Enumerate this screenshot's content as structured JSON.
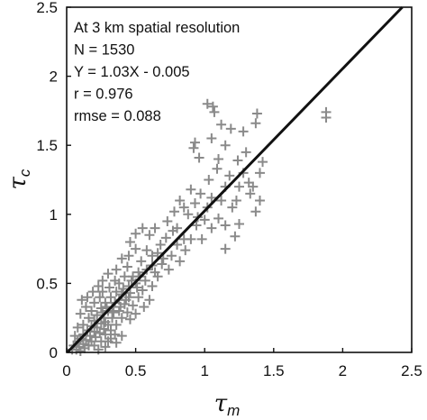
{
  "chart_data": {
    "type": "scatter",
    "xlabel": {
      "symbol": "τ",
      "subscript": "m"
    },
    "ylabel": {
      "symbol": "τ",
      "subscript": "c"
    },
    "xlim": [
      0,
      2.5
    ],
    "ylim": [
      0,
      2.5
    ],
    "xticks": [
      "0",
      "0.5",
      "1",
      "1.5",
      "2",
      "2.5"
    ],
    "yticks": [
      "0",
      "0.5",
      "1",
      "1.5",
      "2",
      "2.5"
    ],
    "grid": false,
    "marker": "+",
    "marker_color": "#8a8a8a",
    "line_color": "#111111",
    "annotations": [
      "At 3 km spatial resolution",
      "N = 1530",
      "Y = 1.03X - 0.005",
      "r = 0.976",
      "rmse = 0.088"
    ],
    "fit_line": {
      "slope": 1.03,
      "intercept": -0.005
    },
    "series": [
      {
        "points": [
          [
            1.02,
            1.8
          ],
          [
            1.06,
            1.78
          ],
          [
            1.07,
            1.74
          ],
          [
            1.88,
            1.74
          ],
          [
            1.88,
            1.7
          ],
          [
            1.38,
            1.73
          ],
          [
            1.37,
            1.66
          ],
          [
            1.12,
            1.65
          ],
          [
            1.19,
            1.62
          ],
          [
            1.28,
            1.6
          ],
          [
            0.93,
            1.52
          ],
          [
            0.92,
            1.48
          ],
          [
            1.05,
            1.55
          ],
          [
            1.15,
            1.5
          ],
          [
            0.96,
            1.41
          ],
          [
            1.1,
            1.4
          ],
          [
            1.24,
            1.39
          ],
          [
            1.3,
            1.45
          ],
          [
            1.4,
            1.3
          ],
          [
            1.32,
            1.23
          ],
          [
            1.28,
            1.3
          ],
          [
            1.18,
            1.28
          ],
          [
            1.09,
            1.33
          ],
          [
            1.03,
            1.25
          ],
          [
            1.25,
            1.2
          ],
          [
            1.15,
            1.2
          ],
          [
            1.23,
            1.1
          ],
          [
            1.4,
            1.1
          ],
          [
            1.37,
            1.02
          ],
          [
            1.33,
            1.15
          ],
          [
            1.05,
            1.12
          ],
          [
            0.9,
            1.18
          ],
          [
            0.93,
            1.08
          ],
          [
            1.02,
            1.05
          ],
          [
            1.1,
            0.97
          ],
          [
            0.82,
            1.1
          ],
          [
            0.78,
            1.02
          ],
          [
            0.88,
            1.0
          ],
          [
            0.73,
            0.95
          ],
          [
            0.94,
            0.92
          ],
          [
            1.05,
            0.9
          ],
          [
            1.15,
            0.92
          ],
          [
            1.25,
            0.93
          ],
          [
            0.8,
            0.9
          ],
          [
            1.22,
            0.84
          ],
          [
            1.15,
            0.75
          ],
          [
            0.98,
            0.82
          ],
          [
            0.9,
            0.82
          ],
          [
            0.86,
            0.74
          ],
          [
            0.8,
            0.78
          ],
          [
            0.72,
            0.83
          ],
          [
            0.64,
            0.9
          ],
          [
            0.6,
            0.85
          ],
          [
            0.55,
            0.9
          ],
          [
            0.5,
            0.86
          ],
          [
            0.46,
            0.8
          ],
          [
            0.5,
            0.75
          ],
          [
            0.58,
            0.74
          ],
          [
            0.66,
            0.72
          ],
          [
            0.7,
            0.68
          ],
          [
            0.62,
            0.63
          ],
          [
            0.54,
            0.66
          ],
          [
            0.45,
            0.7
          ],
          [
            0.4,
            0.68
          ],
          [
            0.52,
            0.58
          ],
          [
            0.58,
            0.6
          ],
          [
            0.74,
            0.6
          ],
          [
            0.66,
            0.55
          ],
          [
            0.48,
            0.55
          ],
          [
            0.42,
            0.55
          ],
          [
            0.38,
            0.5
          ],
          [
            0.45,
            0.48
          ],
          [
            0.5,
            0.5
          ],
          [
            0.55,
            0.45
          ],
          [
            0.62,
            0.48
          ],
          [
            0.36,
            0.44
          ],
          [
            0.32,
            0.4
          ],
          [
            0.4,
            0.42
          ],
          [
            0.45,
            0.4
          ],
          [
            0.52,
            0.4
          ],
          [
            0.6,
            0.38
          ],
          [
            0.28,
            0.36
          ],
          [
            0.35,
            0.36
          ],
          [
            0.42,
            0.35
          ],
          [
            0.48,
            0.34
          ],
          [
            0.56,
            0.33
          ],
          [
            0.25,
            0.32
          ],
          [
            0.3,
            0.3
          ],
          [
            0.38,
            0.3
          ],
          [
            0.44,
            0.29
          ],
          [
            0.5,
            0.28
          ],
          [
            0.22,
            0.27
          ],
          [
            0.27,
            0.25
          ],
          [
            0.33,
            0.25
          ],
          [
            0.4,
            0.25
          ],
          [
            0.46,
            0.24
          ],
          [
            0.2,
            0.23
          ],
          [
            0.25,
            0.21
          ],
          [
            0.3,
            0.2
          ],
          [
            0.36,
            0.2
          ],
          [
            0.18,
            0.19
          ],
          [
            0.22,
            0.18
          ],
          [
            0.27,
            0.17
          ],
          [
            0.32,
            0.16
          ],
          [
            0.15,
            0.16
          ],
          [
            0.2,
            0.15
          ],
          [
            0.24,
            0.14
          ],
          [
            0.28,
            0.13
          ],
          [
            0.12,
            0.13
          ],
          [
            0.17,
            0.12
          ],
          [
            0.21,
            0.11
          ],
          [
            0.1,
            0.1
          ],
          [
            0.14,
            0.09
          ],
          [
            0.18,
            0.08
          ],
          [
            0.08,
            0.08
          ],
          [
            0.12,
            0.06
          ],
          [
            0.16,
            0.05
          ],
          [
            0.05,
            0.05
          ],
          [
            0.09,
            0.04
          ],
          [
            0.13,
            0.03
          ],
          [
            0.04,
            0.02
          ],
          [
            0.07,
            0.02
          ],
          [
            0.1,
            0.01
          ],
          [
            0.2,
            0.05
          ],
          [
            0.25,
            0.08
          ],
          [
            0.28,
            0.04
          ],
          [
            0.32,
            0.1
          ],
          [
            0.35,
            0.13
          ],
          [
            0.16,
            0.25
          ],
          [
            0.12,
            0.2
          ],
          [
            0.1,
            0.28
          ],
          [
            0.14,
            0.33
          ],
          [
            0.18,
            0.3
          ],
          [
            0.2,
            0.36
          ],
          [
            0.24,
            0.4
          ],
          [
            0.26,
            0.44
          ],
          [
            0.31,
            0.47
          ],
          [
            0.35,
            0.52
          ],
          [
            0.08,
            0.18
          ],
          [
            0.06,
            0.12
          ],
          [
            0.28,
            0.22
          ],
          [
            0.33,
            0.33
          ],
          [
            0.38,
            0.38
          ],
          [
            0.41,
            0.46
          ],
          [
            0.47,
            0.52
          ],
          [
            0.53,
            0.55
          ],
          [
            0.57,
            0.52
          ],
          [
            0.64,
            0.58
          ],
          [
            0.69,
            0.64
          ],
          [
            0.76,
            0.7
          ],
          [
            0.82,
            0.66
          ],
          [
            0.85,
            0.82
          ],
          [
            0.95,
            0.98
          ],
          [
            1.0,
            0.96
          ],
          [
            0.97,
            1.15
          ],
          [
            0.85,
            1.05
          ],
          [
            0.77,
            0.88
          ],
          [
            0.68,
            0.78
          ],
          [
            0.62,
            0.7
          ],
          [
            1.2,
            1.05
          ],
          [
            1.35,
            1.2
          ],
          [
            1.42,
            1.38
          ],
          [
            1.12,
            1.1
          ],
          [
            0.3,
            0.08
          ],
          [
            0.36,
            0.07
          ],
          [
            0.4,
            0.12
          ],
          [
            0.23,
            0.02
          ],
          [
            0.15,
            0.4
          ],
          [
            0.19,
            0.44
          ],
          [
            0.11,
            0.38
          ],
          [
            0.26,
            0.52
          ],
          [
            0.3,
            0.57
          ],
          [
            0.23,
            0.48
          ],
          [
            0.44,
            0.62
          ],
          [
            0.36,
            0.6
          ],
          [
            0.34,
            0.29
          ],
          [
            0.39,
            0.33
          ],
          [
            0.43,
            0.38
          ],
          [
            0.46,
            0.43
          ],
          [
            0.51,
            0.47
          ],
          [
            0.26,
            0.29
          ],
          [
            0.29,
            0.33
          ]
        ]
      }
    ]
  }
}
